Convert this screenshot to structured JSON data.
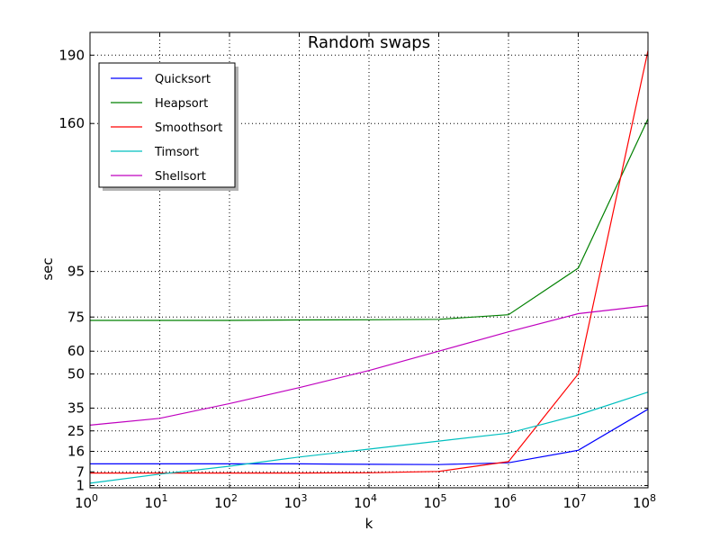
{
  "chart_data": {
    "type": "line",
    "title": "Random swaps",
    "xlabel": "k",
    "ylabel": "sec",
    "xscale": "log",
    "xlim": [
      1,
      100000000
    ],
    "ylim": [
      0,
      200
    ],
    "x": [
      1,
      10,
      100,
      1000,
      10000,
      100000,
      1000000,
      10000000,
      100000000
    ],
    "x_ticks": [
      {
        "base": "10",
        "exp": "0"
      },
      {
        "base": "10",
        "exp": "1"
      },
      {
        "base": "10",
        "exp": "2"
      },
      {
        "base": "10",
        "exp": "3"
      },
      {
        "base": "10",
        "exp": "4"
      },
      {
        "base": "10",
        "exp": "5"
      },
      {
        "base": "10",
        "exp": "6"
      },
      {
        "base": "10",
        "exp": "7"
      },
      {
        "base": "10",
        "exp": "8"
      }
    ],
    "y_ticks": [
      1,
      7,
      16,
      25,
      35,
      50,
      60,
      75,
      95,
      160,
      190
    ],
    "grid": true,
    "legend_position": "top-left",
    "series": [
      {
        "name": "Quicksort",
        "color": "#0000ff",
        "values": [
          10.5,
          10.5,
          10.5,
          10.5,
          10.3,
          10.2,
          11,
          16.5,
          34.5
        ]
      },
      {
        "name": "Heapsort",
        "color": "#008000",
        "values": [
          73.5,
          73.5,
          73.5,
          73.7,
          73.8,
          74,
          76,
          96.5,
          162
        ]
      },
      {
        "name": "Smoothsort",
        "color": "#ff0000",
        "values": [
          6.5,
          6.5,
          6.5,
          6.5,
          6.6,
          7.2,
          11.5,
          50,
          192
        ]
      },
      {
        "name": "Timsort",
        "color": "#00bfbf",
        "values": [
          2,
          6,
          9.5,
          13.5,
          17,
          20.5,
          24,
          32,
          42
        ]
      },
      {
        "name": "Shellsort",
        "color": "#bf00bf",
        "values": [
          27.5,
          30.5,
          37,
          44,
          51.5,
          60,
          68.5,
          76.5,
          80
        ]
      }
    ]
  }
}
